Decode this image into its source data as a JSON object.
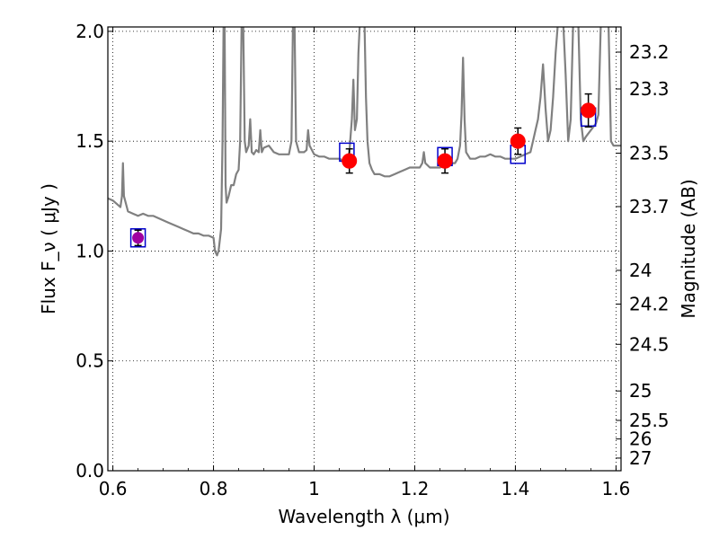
{
  "chart_data": {
    "type": "line",
    "xlabel": "Wavelength  λ (μm)",
    "ylabel": "Flux  F_ν  ( μJy )",
    "y2label": "Magnitude (AB)",
    "xlim": [
      0.59,
      1.61
    ],
    "ylim": [
      0.0,
      2.02
    ],
    "grid": true,
    "x_ticks": [
      {
        "value": 0.6,
        "label": "0.6"
      },
      {
        "value": 0.8,
        "label": "0.8"
      },
      {
        "value": 1.0,
        "label": "1"
      },
      {
        "value": 1.2,
        "label": "1.2"
      },
      {
        "value": 1.4,
        "label": "1.4"
      },
      {
        "value": 1.6,
        "label": "1.6"
      }
    ],
    "y_ticks": [
      {
        "value": 0.0,
        "label": "0.0"
      },
      {
        "value": 0.5,
        "label": "0.5"
      },
      {
        "value": 1.0,
        "label": "1.0"
      },
      {
        "value": 1.5,
        "label": "1.5"
      },
      {
        "value": 2.0,
        "label": "2.0"
      }
    ],
    "magnitude_ticks": [
      "23.2",
      "23.3",
      "23.5",
      "23.7",
      "24",
      "24.2",
      "24.5",
      "25",
      "25.5",
      "26",
      "27"
    ],
    "spectrum_color": "#808080",
    "spectrum": [
      [
        0.59,
        1.24
      ],
      [
        0.6,
        1.23
      ],
      [
        0.61,
        1.21
      ],
      [
        0.615,
        1.2
      ],
      [
        0.618,
        1.25
      ],
      [
        0.62,
        1.4
      ],
      [
        0.622,
        1.25
      ],
      [
        0.63,
        1.18
      ],
      [
        0.64,
        1.17
      ],
      [
        0.65,
        1.16
      ],
      [
        0.66,
        1.17
      ],
      [
        0.67,
        1.16
      ],
      [
        0.68,
        1.16
      ],
      [
        0.69,
        1.15
      ],
      [
        0.7,
        1.14
      ],
      [
        0.71,
        1.13
      ],
      [
        0.72,
        1.12
      ],
      [
        0.73,
        1.11
      ],
      [
        0.74,
        1.1
      ],
      [
        0.75,
        1.09
      ],
      [
        0.76,
        1.08
      ],
      [
        0.77,
        1.08
      ],
      [
        0.78,
        1.07
      ],
      [
        0.79,
        1.07
      ],
      [
        0.8,
        1.06
      ],
      [
        0.803,
        1.0
      ],
      [
        0.807,
        0.98
      ],
      [
        0.81,
        1.0
      ],
      [
        0.815,
        1.1
      ],
      [
        0.818,
        1.5
      ],
      [
        0.82,
        2.05
      ],
      [
        0.822,
        2.05
      ],
      [
        0.824,
        1.3
      ],
      [
        0.826,
        1.22
      ],
      [
        0.83,
        1.25
      ],
      [
        0.835,
        1.3
      ],
      [
        0.84,
        1.3
      ],
      [
        0.845,
        1.35
      ],
      [
        0.85,
        1.37
      ],
      [
        0.853,
        1.5
      ],
      [
        0.856,
        2.05
      ],
      [
        0.859,
        2.05
      ],
      [
        0.862,
        1.5
      ],
      [
        0.865,
        1.45
      ],
      [
        0.87,
        1.48
      ],
      [
        0.873,
        1.6
      ],
      [
        0.876,
        1.45
      ],
      [
        0.88,
        1.44
      ],
      [
        0.885,
        1.46
      ],
      [
        0.89,
        1.45
      ],
      [
        0.893,
        1.55
      ],
      [
        0.896,
        1.45
      ],
      [
        0.9,
        1.47
      ],
      [
        0.91,
        1.48
      ],
      [
        0.92,
        1.45
      ],
      [
        0.93,
        1.44
      ],
      [
        0.94,
        1.44
      ],
      [
        0.95,
        1.44
      ],
      [
        0.955,
        1.5
      ],
      [
        0.958,
        2.05
      ],
      [
        0.961,
        2.05
      ],
      [
        0.964,
        1.5
      ],
      [
        0.97,
        1.45
      ],
      [
        0.98,
        1.45
      ],
      [
        0.985,
        1.46
      ],
      [
        0.988,
        1.55
      ],
      [
        0.991,
        1.48
      ],
      [
        1.0,
        1.44
      ],
      [
        1.01,
        1.43
      ],
      [
        1.02,
        1.43
      ],
      [
        1.03,
        1.42
      ],
      [
        1.04,
        1.42
      ],
      [
        1.05,
        1.42
      ],
      [
        1.06,
        1.41
      ],
      [
        1.065,
        1.41
      ],
      [
        1.07,
        1.45
      ],
      [
        1.075,
        1.6
      ],
      [
        1.078,
        1.78
      ],
      [
        1.081,
        1.55
      ],
      [
        1.085,
        1.6
      ],
      [
        1.088,
        1.9
      ],
      [
        1.091,
        2.05
      ],
      [
        1.1,
        2.05
      ],
      [
        1.103,
        1.7
      ],
      [
        1.106,
        1.5
      ],
      [
        1.11,
        1.4
      ],
      [
        1.115,
        1.37
      ],
      [
        1.12,
        1.35
      ],
      [
        1.13,
        1.35
      ],
      [
        1.14,
        1.34
      ],
      [
        1.15,
        1.34
      ],
      [
        1.16,
        1.35
      ],
      [
        1.17,
        1.36
      ],
      [
        1.18,
        1.37
      ],
      [
        1.19,
        1.38
      ],
      [
        1.2,
        1.38
      ],
      [
        1.21,
        1.38
      ],
      [
        1.215,
        1.4
      ],
      [
        1.218,
        1.45
      ],
      [
        1.221,
        1.4
      ],
      [
        1.23,
        1.38
      ],
      [
        1.24,
        1.38
      ],
      [
        1.25,
        1.38
      ],
      [
        1.26,
        1.39
      ],
      [
        1.27,
        1.4
      ],
      [
        1.28,
        1.4
      ],
      [
        1.285,
        1.42
      ],
      [
        1.29,
        1.48
      ],
      [
        1.293,
        1.62
      ],
      [
        1.296,
        1.88
      ],
      [
        1.299,
        1.6
      ],
      [
        1.302,
        1.45
      ],
      [
        1.31,
        1.42
      ],
      [
        1.32,
        1.42
      ],
      [
        1.33,
        1.43
      ],
      [
        1.34,
        1.43
      ],
      [
        1.35,
        1.44
      ],
      [
        1.36,
        1.43
      ],
      [
        1.37,
        1.43
      ],
      [
        1.38,
        1.42
      ],
      [
        1.39,
        1.42
      ],
      [
        1.4,
        1.42
      ],
      [
        1.41,
        1.43
      ],
      [
        1.42,
        1.44
      ],
      [
        1.43,
        1.45
      ],
      [
        1.435,
        1.5
      ],
      [
        1.44,
        1.55
      ],
      [
        1.445,
        1.6
      ],
      [
        1.45,
        1.7
      ],
      [
        1.455,
        1.85
      ],
      [
        1.46,
        1.65
      ],
      [
        1.465,
        1.5
      ],
      [
        1.47,
        1.55
      ],
      [
        1.475,
        1.7
      ],
      [
        1.48,
        1.9
      ],
      [
        1.485,
        2.05
      ],
      [
        1.495,
        2.05
      ],
      [
        1.5,
        1.8
      ],
      [
        1.505,
        1.5
      ],
      [
        1.51,
        1.6
      ],
      [
        1.515,
        2.05
      ],
      [
        1.525,
        2.05
      ],
      [
        1.53,
        1.6
      ],
      [
        1.535,
        1.5
      ],
      [
        1.54,
        1.52
      ],
      [
        1.55,
        1.55
      ],
      [
        1.56,
        1.58
      ],
      [
        1.565,
        1.62
      ],
      [
        1.57,
        2.05
      ],
      [
        1.585,
        2.05
      ],
      [
        1.59,
        1.5
      ],
      [
        1.595,
        1.48
      ],
      [
        1.6,
        1.48
      ],
      [
        1.61,
        1.48
      ]
    ],
    "model_points": {
      "marker": "square",
      "edge_color": "#0000cc",
      "points": [
        [
          0.65,
          1.06
        ],
        [
          1.065,
          1.45
        ],
        [
          1.26,
          1.43
        ],
        [
          1.405,
          1.44
        ],
        [
          1.545,
          1.61
        ]
      ]
    },
    "observed_points": {
      "marker": "circle",
      "face_color": "#ff0000",
      "points": [
        {
          "x": 0.65,
          "y": 1.06,
          "err": 0.035
        },
        {
          "x": 1.07,
          "y": 1.41,
          "err": 0.055
        },
        {
          "x": 1.26,
          "y": 1.41,
          "err": 0.055
        },
        {
          "x": 1.405,
          "y": 1.5,
          "err": 0.06
        },
        {
          "x": 1.545,
          "y": 1.64,
          "err": 0.075
        }
      ]
    }
  }
}
